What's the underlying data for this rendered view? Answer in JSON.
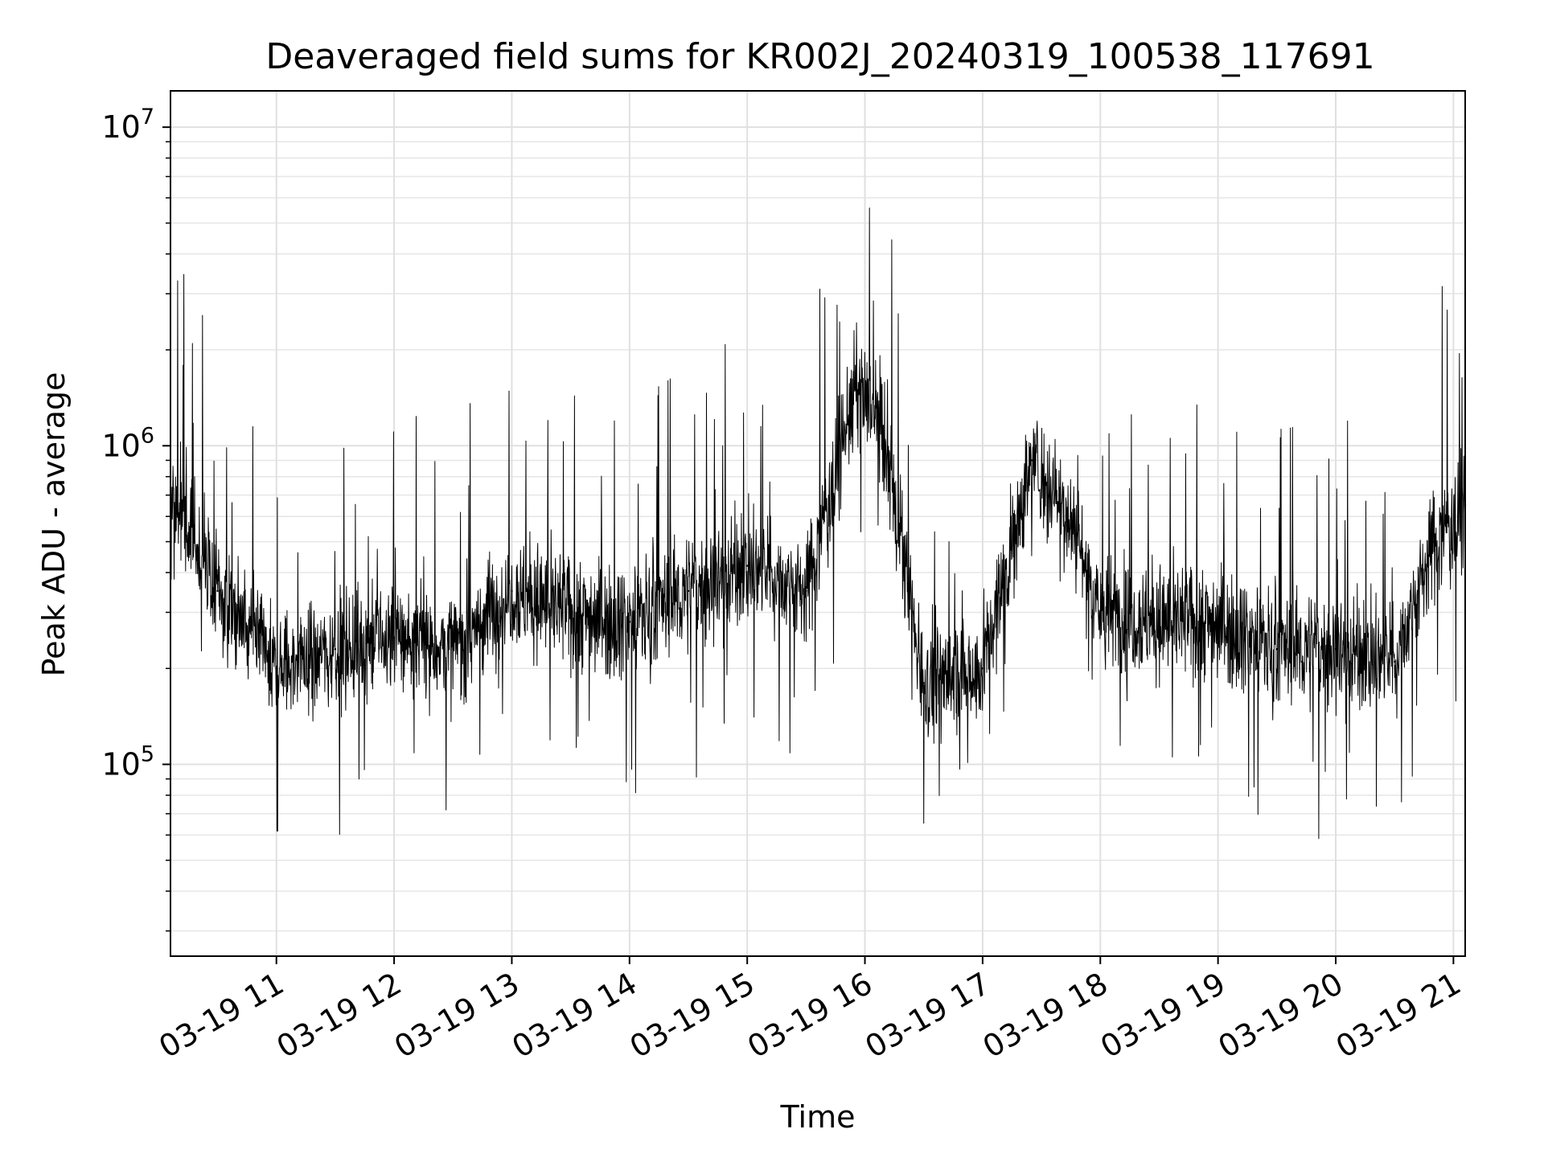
{
  "chart_data": {
    "type": "line",
    "title": "Deaveraged field sums for KR002J_20240319_100538_117691",
    "xlabel": "Time",
    "ylabel": "Peak ADU - average",
    "yscale": "log",
    "xlim": [
      "2024-03-19 10:06",
      "2024-03-19 21:06"
    ],
    "ylim": [
      25000,
      13000000
    ],
    "xticks": [
      "03-19 11",
      "03-19 12",
      "03-19 13",
      "03-19 14",
      "03-19 15",
      "03-19 16",
      "03-19 17",
      "03-19 18",
      "03-19 19",
      "03-19 20",
      "03-19 21"
    ],
    "yticks": [
      {
        "base": "10",
        "exp": "5",
        "value": 100000
      },
      {
        "base": "10",
        "exp": "6",
        "value": 1000000
      },
      {
        "base": "10",
        "exp": "7",
        "value": 10000000
      }
    ],
    "grid": true,
    "line_color": "#000000",
    "x": [
      "2024-03-19 10:06",
      "2024-03-19 10:30",
      "2024-03-19 11:00",
      "2024-03-19 11:30",
      "2024-03-19 12:00",
      "2024-03-19 12:30",
      "2024-03-19 13:00",
      "2024-03-19 13:30",
      "2024-03-19 14:00",
      "2024-03-19 14:30",
      "2024-03-19 15:00",
      "2024-03-19 15:30",
      "2024-03-19 15:55",
      "2024-03-19 16:08",
      "2024-03-19 16:30",
      "2024-03-19 17:00",
      "2024-03-19 17:25",
      "2024-03-19 17:45",
      "2024-03-19 18:00",
      "2024-03-19 18:30",
      "2024-03-19 19:00",
      "2024-03-19 19:30",
      "2024-03-19 20:00",
      "2024-03-19 20:30",
      "2024-03-19 20:50",
      "2024-03-19 21:06"
    ],
    "y": [
      700000,
      350000,
      200000,
      230000,
      250000,
      230000,
      350000,
      300000,
      280000,
      350000,
      420000,
      350000,
      1500000,
      1200000,
      180000,
      200000,
      900000,
      600000,
      300000,
      280000,
      280000,
      230000,
      230000,
      210000,
      500000,
      650000
    ]
  }
}
